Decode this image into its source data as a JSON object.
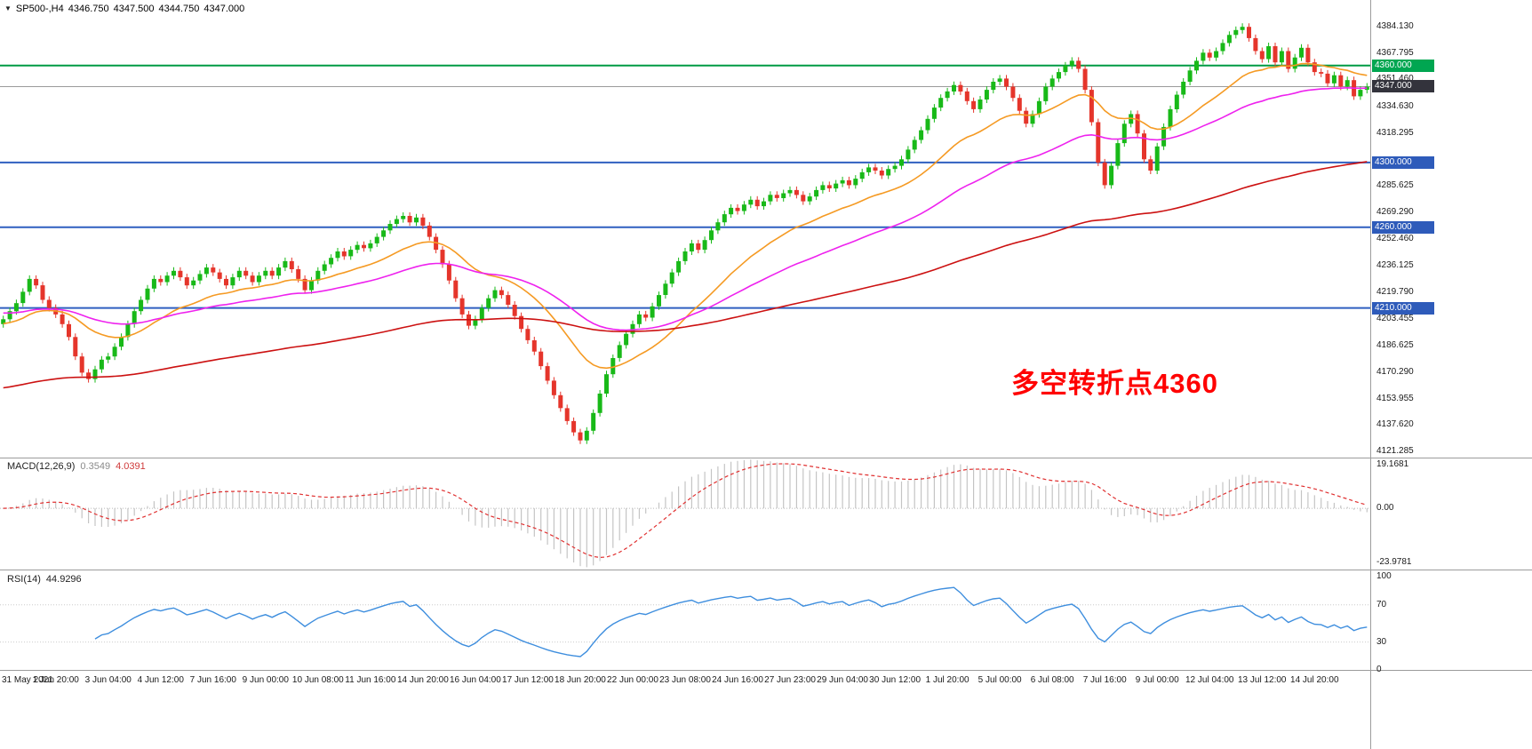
{
  "header": {
    "symbol": "SP500-,H4",
    "open": "4346.750",
    "high": "4347.500",
    "low": "4344.750",
    "close": "4347.000"
  },
  "annotation": {
    "text": "多空转折点4360",
    "color": "#FF0000"
  },
  "chart_data": [
    {
      "type": "candlestick",
      "title": "SP500-,H4",
      "symbol": "SP500-",
      "timeframe": "H4",
      "bars_per_label": 8,
      "x_labels": [
        "31 May 2021",
        "1 Jun 20:00",
        "3 Jun 04:00",
        "4 Jun 12:00",
        "7 Jun 16:00",
        "9 Jun 00:00",
        "10 Jun 08:00",
        "11 Jun 16:00",
        "14 Jun 20:00",
        "16 Jun 04:00",
        "17 Jun 12:00",
        "18 Jun 20:00",
        "22 Jun 00:00",
        "23 Jun 08:00",
        "24 Jun 16:00",
        "27 Jun 23:00",
        "29 Jun 04:00",
        "30 Jun 12:00",
        "1 Jul 20:00",
        "5 Jul 00:00",
        "6 Jul 08:00",
        "7 Jul 16:00",
        "9 Jul 00:00",
        "12 Jul 04:00",
        "13 Jul 12:00",
        "14 Jul 20:00"
      ],
      "first_open": 4200,
      "wick": 2.2,
      "closes": [
        4203,
        4208,
        4213,
        4220,
        4228,
        4224,
        4215,
        4210,
        4206,
        4200,
        4192,
        4180,
        4170,
        4166,
        4172,
        4178,
        4180,
        4186,
        4192,
        4200,
        4208,
        4215,
        4222,
        4228,
        4226,
        4230,
        4233,
        4229,
        4224,
        4227,
        4231,
        4235,
        4232,
        4228,
        4224,
        4229,
        4233,
        4230,
        4226,
        4230,
        4233,
        4230,
        4235,
        4239,
        4234,
        4228,
        4221,
        4227,
        4233,
        4237,
        4241,
        4245,
        4242,
        4246,
        4249,
        4247,
        4250,
        4254,
        4258,
        4262,
        4265,
        4267,
        4263,
        4266,
        4261,
        4254,
        4246,
        4237,
        4227,
        4216,
        4206,
        4199,
        4203,
        4210,
        4216,
        4221,
        4218,
        4212,
        4205,
        4197,
        4190,
        4183,
        4174,
        4165,
        4156,
        4148,
        4140,
        4133,
        4128,
        4134,
        4145,
        4157,
        4169,
        4179,
        4187,
        4194,
        4200,
        4206,
        4204,
        4211,
        4218,
        4225,
        4232,
        4239,
        4245,
        4250,
        4246,
        4252,
        4258,
        4263,
        4268,
        4272,
        4270,
        4274,
        4277,
        4273,
        4276,
        4280,
        4278,
        4281,
        4283,
        4280,
        4276,
        4279,
        4283,
        4286,
        4284,
        4287,
        4289,
        4286,
        4290,
        4294,
        4297,
        4295,
        4292,
        4296,
        4298,
        4302,
        4308,
        4314,
        4320,
        4327,
        4334,
        4340,
        4344,
        4348,
        4344,
        4338,
        4333,
        4339,
        4345,
        4350,
        4352,
        4347,
        4340,
        4332,
        4324,
        4330,
        4338,
        4347,
        4352,
        4356,
        4360,
        4363,
        4358,
        4345,
        4325,
        4300,
        4286,
        4298,
        4312,
        4324,
        4330,
        4318,
        4302,
        4295,
        4310,
        4322,
        4333,
        4342,
        4350,
        4357,
        4363,
        4368,
        4365,
        4369,
        4374,
        4379,
        4382,
        4384,
        4377,
        4369,
        4364,
        4372,
        4362,
        4369,
        4358,
        4365,
        4371,
        4362,
        4356,
        4355,
        4349,
        4354,
        4347,
        4351,
        4341,
        4345,
        4347
      ],
      "ylim": [
        4117.4,
        4400.6
      ],
      "up_color": "#18B918",
      "down_color": "#E5352B",
      "levels": [
        {
          "price": 4360,
          "color": "#009A44",
          "width": 2,
          "label": "4360.000",
          "badge_bg": "#00A651"
        },
        {
          "price": 4347,
          "color": "#9A9A9A",
          "width": 1,
          "label": "4347.000",
          "badge_bg": "#33333C"
        },
        {
          "price": 4300,
          "color": "#2F5FC0",
          "width": 2,
          "label": "4300.000",
          "badge_bg": "#2E5BBA"
        },
        {
          "price": 4260,
          "color": "#2F5FC0",
          "width": 2,
          "label": "4260.000",
          "badge_bg": "#2E5BBA"
        },
        {
          "price": 4210,
          "color": "#2F5FC0",
          "width": 2,
          "label": "4210.000",
          "badge_bg": "#2E5BBA"
        }
      ],
      "moving_averages": [
        {
          "name": "ma-fast",
          "type": "ema",
          "period": 21,
          "seed": 4200,
          "color": "#F59A23"
        },
        {
          "name": "ma-mid",
          "type": "ema",
          "period": 50,
          "seed": 4207,
          "color": "#EE22EE"
        },
        {
          "name": "ma-slow",
          "type": "ema",
          "period": 150,
          "seed": 4160,
          "color": "#CC1111"
        }
      ],
      "y_ticks": [
        {
          "label": "4384.130",
          "price": 4384.13
        },
        {
          "label": "4367.795",
          "price": 4367.795
        },
        {
          "label": "4351.460",
          "price": 4351.46
        },
        {
          "label": "4334.630",
          "price": 4334.63
        },
        {
          "label": "4318.295",
          "price": 4318.295
        },
        {
          "label": "4285.625",
          "price": 4285.625
        },
        {
          "label": "4269.290",
          "price": 4269.29
        },
        {
          "label": "4252.460",
          "price": 4252.46
        },
        {
          "label": "4236.125",
          "price": 4236.125
        },
        {
          "label": "4219.790",
          "price": 4219.79
        },
        {
          "label": "4203.455",
          "price": 4203.455
        },
        {
          "label": "4186.625",
          "price": 4186.625
        },
        {
          "label": "4170.290",
          "price": 4170.29
        },
        {
          "label": "4153.955",
          "price": 4153.955
        },
        {
          "label": "4137.620",
          "price": 4137.62
        },
        {
          "label": "4121.285",
          "price": 4121.285
        }
      ]
    },
    {
      "type": "macd",
      "label": "MACD(12,26,9)",
      "fast": 12,
      "slow": 26,
      "signal": 9,
      "current_main": "0.3549",
      "current_signal": "4.0391",
      "ylim": [
        -27,
        22
      ],
      "y_ticks": [
        {
          "label": "19.1681",
          "value": 19.1681
        },
        {
          "label": "0.00",
          "value": 0
        },
        {
          "label": "-23.9781",
          "value": -23.9781
        }
      ],
      "histogram_color": "#C4C4C4",
      "signal_color": "#E03030",
      "source": "chart_data.0.closes"
    },
    {
      "type": "rsi",
      "label": "RSI(14)",
      "period": 14,
      "current": "44.9296",
      "ylim": [
        0,
        107
      ],
      "y_ticks": [
        {
          "label": "100",
          "value": 100
        },
        {
          "label": "70",
          "value": 70
        },
        {
          "label": "30",
          "value": 30
        },
        {
          "label": "0",
          "value": 0
        }
      ],
      "levels": [
        70,
        30
      ],
      "color": "#3E8EDE",
      "source": "chart_data.0.closes"
    }
  ]
}
